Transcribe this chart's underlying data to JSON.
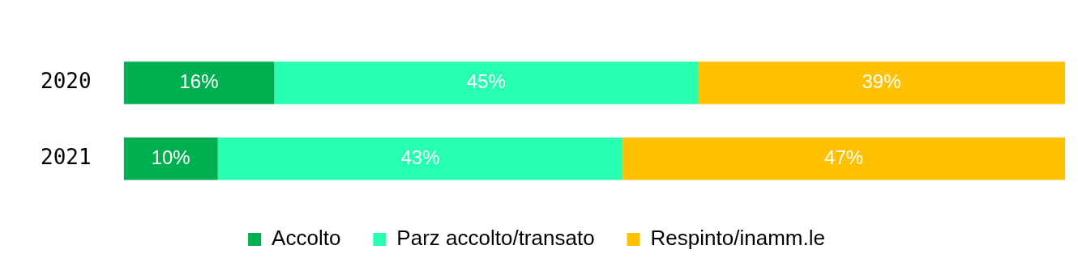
{
  "chart_data": {
    "type": "bar",
    "orientation": "horizontal",
    "stacked": true,
    "categories": [
      "2020",
      "2021"
    ],
    "series": [
      {
        "name": "Accolto",
        "color": "#00b050",
        "values": [
          16,
          10
        ],
        "value_labels": [
          "16%",
          "10%"
        ]
      },
      {
        "name": "Parz accolto/transato",
        "color": "#25ffaf",
        "values": [
          45,
          43
        ],
        "value_labels": [
          "45%",
          "43%"
        ]
      },
      {
        "name": "Respinto/inamm.le",
        "color": "#ffc000",
        "values": [
          39,
          47
        ],
        "value_labels": [
          "39%",
          "47%"
        ]
      }
    ],
    "xlim": [
      0,
      100
    ],
    "tick_labels": "y",
    "grid": false,
    "legend": "bottom"
  }
}
